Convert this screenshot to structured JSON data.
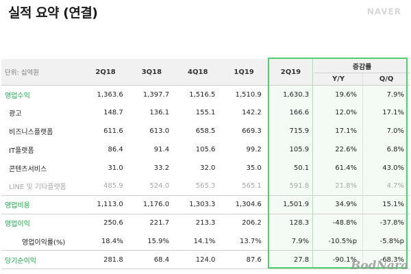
{
  "header": {
    "title": "실적 요약 (연결)",
    "brand": "NAVER"
  },
  "table": {
    "unit_label": "단위: 십억원",
    "columns": [
      "2Q18",
      "3Q18",
      "4Q18",
      "1Q19",
      "2Q19"
    ],
    "change_group": "증감률",
    "change_cols": [
      "Y/Y",
      "Q/Q"
    ],
    "rows": [
      {
        "label": "영업수익",
        "values": [
          "1,363.6",
          "1,397.7",
          "1,516.5",
          "1,510.9",
          "1,630.3"
        ],
        "yy": "19.6%",
        "qq": "7.9%"
      },
      {
        "label": "광고",
        "values": [
          "148.7",
          "136.1",
          "155.1",
          "142.2",
          "166.6"
        ],
        "yy": "12.0%",
        "qq": "17.1%"
      },
      {
        "label": "비즈니스플랫폼",
        "values": [
          "611.6",
          "613.0",
          "658.5",
          "669.3",
          "715.9"
        ],
        "yy": "17.1%",
        "qq": "7.0%"
      },
      {
        "label": "IT플랫폼",
        "values": [
          "86.4",
          "91.4",
          "105.6",
          "99.2",
          "105.9"
        ],
        "yy": "22.6%",
        "qq": "6.8%"
      },
      {
        "label": "콘텐츠서비스",
        "values": [
          "31.0",
          "33.2",
          "32.0",
          "35.0",
          "50.1"
        ],
        "yy": "61.4%",
        "qq": "43.0%"
      },
      {
        "label": "LINE 및 기타플랫폼",
        "values": [
          "485.9",
          "524.0",
          "565.3",
          "565.1",
          "591.8"
        ],
        "yy": "21.8%",
        "qq": "4.7%"
      },
      {
        "label": "영업비용",
        "values": [
          "1,113.0",
          "1,176.0",
          "1,303.3",
          "1,304.6",
          "1,501.9"
        ],
        "yy": "34.9%",
        "qq": "15.1%"
      },
      {
        "label": "영업이익",
        "values": [
          "250.6",
          "221.7",
          "213.3",
          "206.2",
          "128.3"
        ],
        "yy": "-48.8%",
        "qq": "-37.8%"
      },
      {
        "label": "영업이익률(%)",
        "values": [
          "18.4%",
          "15.9%",
          "14.1%",
          "13.7%",
          "7.9%"
        ],
        "yy": "-10.5%p",
        "qq": "-5.8%p"
      },
      {
        "label": "당기순이익",
        "values": [
          "281.8",
          "68.4",
          "124.0",
          "87.6",
          "27.8"
        ],
        "yy": "-90.1%",
        "qq": "-68.3%"
      }
    ]
  },
  "watermark": "BodNara",
  "colors": {
    "accent": "#1aa84a",
    "highlight_border": "#4fcf6d",
    "header_bg": "#f1f1f1"
  }
}
